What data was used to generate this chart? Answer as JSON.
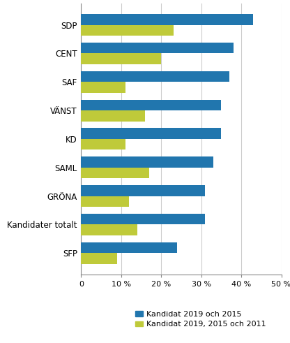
{
  "categories": [
    "SDP",
    "CENT",
    "SAF",
    "VÄNST",
    "KD",
    "SAML",
    "GRÖNA",
    "Kandidater totalt",
    "SFP"
  ],
  "blue_values": [
    43,
    38,
    37,
    35,
    35,
    33,
    31,
    31,
    24
  ],
  "green_values": [
    23,
    20,
    11,
    16,
    11,
    17,
    12,
    14,
    9
  ],
  "blue_color": "#2176AE",
  "green_color": "#BFCA3A",
  "blue_label": "Kandidat 2019 och 2015",
  "green_label": "Kandidat 2019, 2015 och 2011",
  "xlim": [
    0,
    50
  ],
  "xticks": [
    0,
    10,
    20,
    30,
    40,
    50
  ],
  "xtick_labels": [
    "0",
    "10 %",
    "20 %",
    "30 %",
    "40 %",
    "50 %"
  ],
  "bar_height": 0.38,
  "background_color": "#ffffff",
  "grid_color": "#cccccc"
}
